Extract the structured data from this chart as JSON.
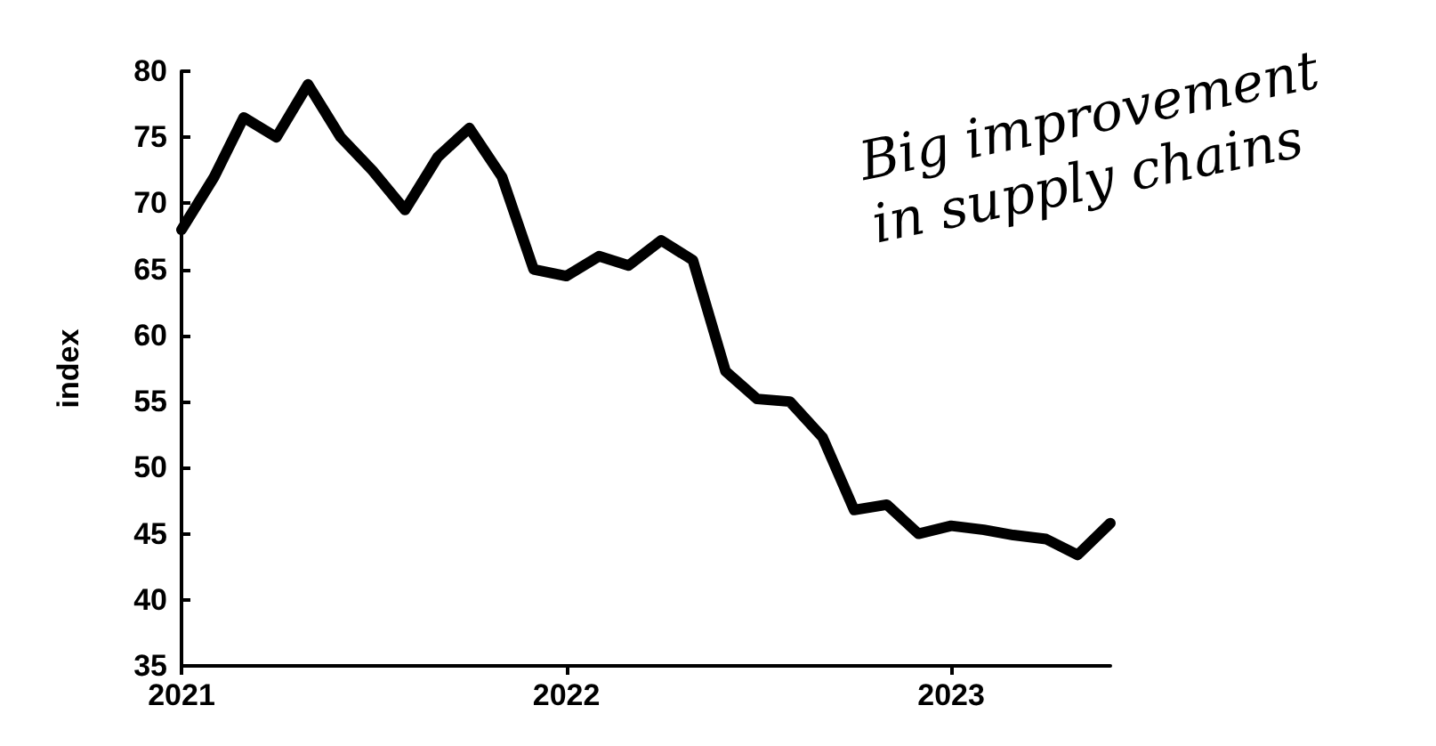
{
  "chart_data": {
    "type": "line",
    "ylabel": "index",
    "x": [
      "2021-01",
      "2021-02",
      "2021-03",
      "2021-04",
      "2021-05",
      "2021-06",
      "2021-07",
      "2021-08",
      "2021-09",
      "2021-10",
      "2021-11",
      "2021-12",
      "2022-01",
      "2022-02",
      "2022-03",
      "2022-04",
      "2022-05",
      "2022-06",
      "2022-07",
      "2022-08",
      "2022-09",
      "2022-10",
      "2022-11",
      "2022-12",
      "2023-01",
      "2023-02",
      "2023-03",
      "2023-04",
      "2023-05",
      "2023-06"
    ],
    "series": [
      {
        "color": "#000000",
        "values": [
          68,
          72,
          76.5,
          75,
          79,
          75,
          72.5,
          69.5,
          73.5,
          75.7,
          72,
          65,
          64.5,
          66,
          65.3,
          67.2,
          65.7,
          57.3,
          55.2,
          55,
          52.3,
          46.8,
          47.2,
          45,
          45.6,
          45.3,
          44.9,
          44.6,
          43.4,
          45.8
        ]
      }
    ],
    "xlim": [
      "2021-01",
      "2023-06"
    ],
    "xticks": [
      "2021",
      "2022",
      "2023"
    ],
    "ylim": [
      35,
      80
    ],
    "yticks": [
      35,
      40,
      45,
      50,
      55,
      60,
      65,
      70,
      75,
      80
    ],
    "grid": false,
    "marker": "none",
    "line_style": "solid",
    "annotations": [
      "Big improvement\nin supply chains"
    ]
  }
}
